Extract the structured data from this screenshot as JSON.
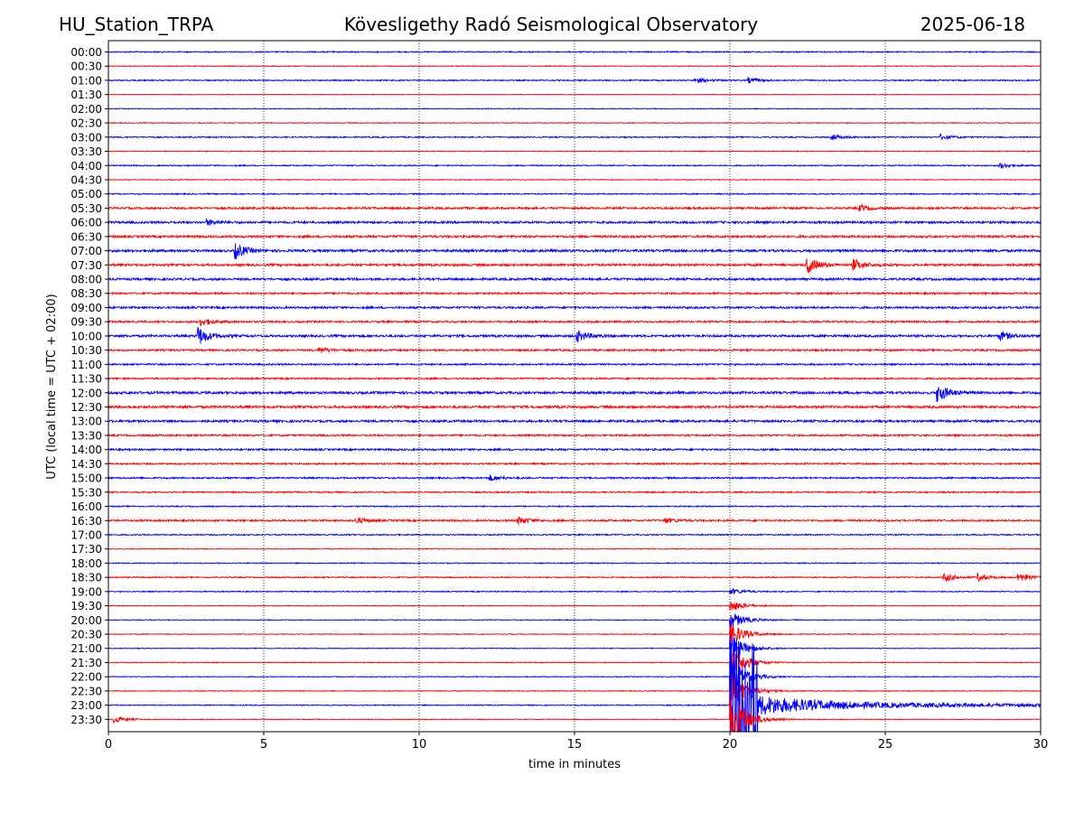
{
  "header": {
    "station": "HU_Station_TRPA",
    "observatory": "Kövesligethy Radó Seismological Observatory",
    "date": "2025-06-18"
  },
  "colors": {
    "even_trace": "#0000ff",
    "odd_trace": "#ff0000",
    "grid": "#000000"
  },
  "chart_data": {
    "type": "line",
    "title": "Kövesligethy Radó Seismological Observatory",
    "xlabel": "time in minutes",
    "ylabel": "UTC (local time = UTC + 02:00)",
    "xlim": [
      0,
      30
    ],
    "x_ticks": [
      "0",
      "5",
      "10",
      "15",
      "20",
      "25",
      "30"
    ],
    "vertical_grid_at": [
      5,
      10,
      15,
      20,
      25
    ],
    "grid": "vertical dotted",
    "rows": [
      "00:00",
      "00:30",
      "01:00",
      "01:30",
      "02:00",
      "02:30",
      "03:00",
      "03:30",
      "04:00",
      "04:30",
      "05:00",
      "05:30",
      "06:00",
      "06:30",
      "07:00",
      "07:30",
      "08:00",
      "08:30",
      "09:00",
      "09:30",
      "10:00",
      "10:30",
      "11:00",
      "11:30",
      "12:00",
      "12:30",
      "13:00",
      "13:30",
      "14:00",
      "14:30",
      "15:00",
      "15:30",
      "16:00",
      "16:30",
      "17:00",
      "17:30",
      "18:00",
      "18:30",
      "19:00",
      "19:30",
      "20:00",
      "20:30",
      "21:00",
      "21:30",
      "22:00",
      "22:30",
      "23:00",
      "23:30"
    ],
    "row_colors": "alternating blue (full hour) / red (half hour)",
    "noise_levels": [
      0.3,
      0.2,
      0.3,
      0.15,
      0.2,
      0.2,
      0.3,
      0.2,
      0.3,
      0.2,
      0.3,
      0.5,
      0.55,
      0.55,
      0.6,
      0.55,
      0.55,
      0.45,
      0.5,
      0.45,
      0.55,
      0.45,
      0.4,
      0.4,
      0.6,
      0.6,
      0.55,
      0.45,
      0.45,
      0.4,
      0.4,
      0.35,
      0.3,
      0.45,
      0.3,
      0.2,
      0.25,
      0.3,
      0.25,
      0.2,
      0.2,
      0.2,
      0.2,
      0.2,
      0.2,
      0.2,
      0.25,
      0.2
    ],
    "events": [
      {
        "row": "01:00",
        "minute": 18.9,
        "amplitude": 3
      },
      {
        "row": "01:00",
        "minute": 20.6,
        "amplitude": 3
      },
      {
        "row": "03:00",
        "minute": 23.3,
        "amplitude": 3
      },
      {
        "row": "03:00",
        "minute": 26.8,
        "amplitude": 3
      },
      {
        "row": "04:00",
        "minute": 28.7,
        "amplitude": 3
      },
      {
        "row": "05:30",
        "minute": 24.2,
        "amplitude": 3
      },
      {
        "row": "06:00",
        "minute": 3.2,
        "amplitude": 3
      },
      {
        "row": "07:00",
        "minute": 4.1,
        "amplitude": 8
      },
      {
        "row": "07:30",
        "minute": 22.5,
        "amplitude": 9
      },
      {
        "row": "07:30",
        "minute": 24.0,
        "amplitude": 6
      },
      {
        "row": "09:30",
        "minute": 3.0,
        "amplitude": 4
      },
      {
        "row": "10:00",
        "minute": 2.9,
        "amplitude": 10
      },
      {
        "row": "10:00",
        "minute": 15.1,
        "amplitude": 6
      },
      {
        "row": "10:00",
        "minute": 28.7,
        "amplitude": 5
      },
      {
        "row": "10:30",
        "minute": 6.8,
        "amplitude": 3
      },
      {
        "row": "12:00",
        "minute": 26.7,
        "amplitude": 10
      },
      {
        "row": "15:00",
        "minute": 12.3,
        "amplitude": 3
      },
      {
        "row": "16:30",
        "minute": 8.0,
        "amplitude": 3
      },
      {
        "row": "16:30",
        "minute": 13.2,
        "amplitude": 4
      },
      {
        "row": "16:30",
        "minute": 17.9,
        "amplitude": 3
      },
      {
        "row": "18:30",
        "minute": 26.9,
        "amplitude": 5
      },
      {
        "row": "18:30",
        "minute": 28.0,
        "amplitude": 4
      },
      {
        "row": "18:30",
        "minute": 29.3,
        "amplitude": 5
      },
      {
        "row": "23:30",
        "minute": 0.2,
        "amplitude": 4
      },
      {
        "row": "23:30",
        "minute": 20.2,
        "amplitude": 4
      }
    ],
    "earthquake": {
      "onset_minute": 20.0,
      "peak_minute": 20.3,
      "coda_end_minute": 30.0,
      "rows_affected": [
        "19:00",
        "23:30"
      ],
      "peak_on_row": "23:00"
    }
  }
}
